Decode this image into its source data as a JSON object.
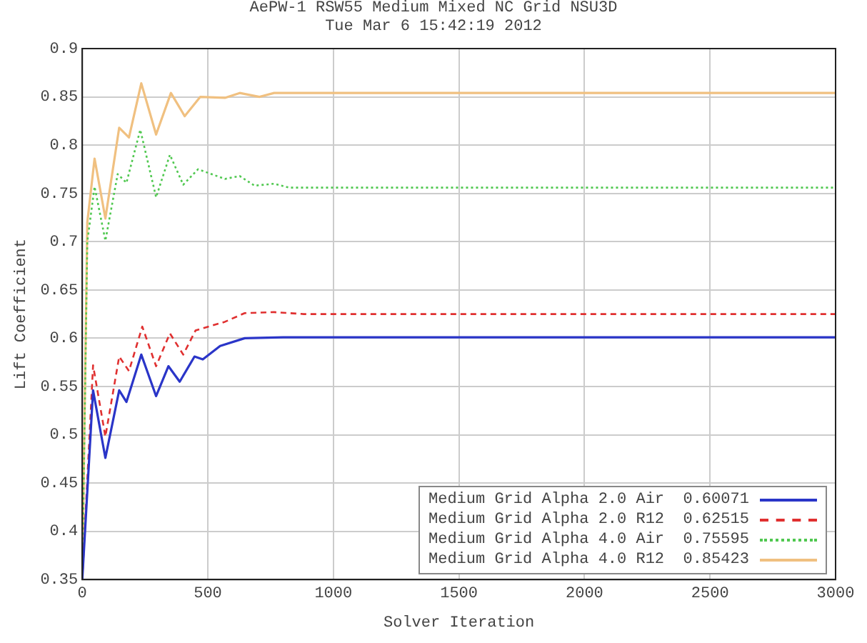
{
  "chart_data": {
    "type": "line",
    "title": "AePW-1 RSW55 Medium Mixed NC Grid NSU3D",
    "subtitle": "Tue Mar  6 15:42:19 2012",
    "xlabel": "Solver Iteration",
    "ylabel": "Lift Coefficient",
    "xlim": [
      0,
      3000
    ],
    "xticks": [
      0,
      500,
      1000,
      1500,
      2000,
      2500,
      3000
    ],
    "ylim": [
      0.35,
      0.9
    ],
    "yticks": [
      0.35,
      0.4,
      0.45,
      0.5,
      0.55,
      0.6,
      0.65,
      0.7,
      0.75,
      0.8,
      0.85,
      0.9
    ],
    "grid": true,
    "legend": "bottom right",
    "marker": "none",
    "series": [
      {
        "name": "Medium Grid Alpha 2.0 Air  0.60071",
        "color": "#2a35c8",
        "line_style": "solid",
        "x": [
          0,
          43,
          92,
          147,
          176,
          235,
          294,
          343,
          388,
          447,
          480,
          549,
          647,
          800,
          1500,
          3000
        ],
        "values": [
          0.35,
          0.546,
          0.476,
          0.546,
          0.534,
          0.583,
          0.54,
          0.571,
          0.555,
          0.581,
          0.578,
          0.592,
          0.6,
          0.601,
          0.601,
          0.601
        ]
      },
      {
        "name": "Medium Grid Alpha 2.0 R12  0.62515",
        "color": "#e03030",
        "line_style": "dashed",
        "x": [
          0,
          43,
          92,
          147,
          186,
          239,
          294,
          349,
          402,
          451,
          490,
          568,
          647,
          764,
          882,
          1500,
          3000
        ],
        "values": [
          0.35,
          0.572,
          0.498,
          0.581,
          0.566,
          0.612,
          0.571,
          0.605,
          0.583,
          0.608,
          0.611,
          0.617,
          0.626,
          0.627,
          0.625,
          0.625,
          0.625
        ]
      },
      {
        "name": "Medium Grid Alpha 4.0 Air  0.75595",
        "color": "#50c850",
        "line_style": "dotted",
        "x": [
          0,
          20,
          49,
          92,
          141,
          176,
          231,
          294,
          349,
          402,
          461,
          568,
          627,
          686,
          764,
          823,
          1500,
          3000
        ],
        "values": [
          0.35,
          0.7,
          0.757,
          0.701,
          0.77,
          0.761,
          0.816,
          0.746,
          0.79,
          0.759,
          0.775,
          0.765,
          0.768,
          0.758,
          0.76,
          0.756,
          0.756,
          0.756
        ]
      },
      {
        "name": "Medium Grid Alpha 4.0 R12  0.85423",
        "color": "#f0c080",
        "line_style": "solid",
        "x": [
          0,
          20,
          49,
          92,
          147,
          186,
          235,
          294,
          353,
          408,
          470,
          568,
          627,
          706,
          764,
          1500,
          3000
        ],
        "values": [
          0.35,
          0.72,
          0.786,
          0.724,
          0.818,
          0.808,
          0.864,
          0.811,
          0.854,
          0.83,
          0.85,
          0.849,
          0.854,
          0.85,
          0.854,
          0.854,
          0.854
        ]
      }
    ]
  }
}
